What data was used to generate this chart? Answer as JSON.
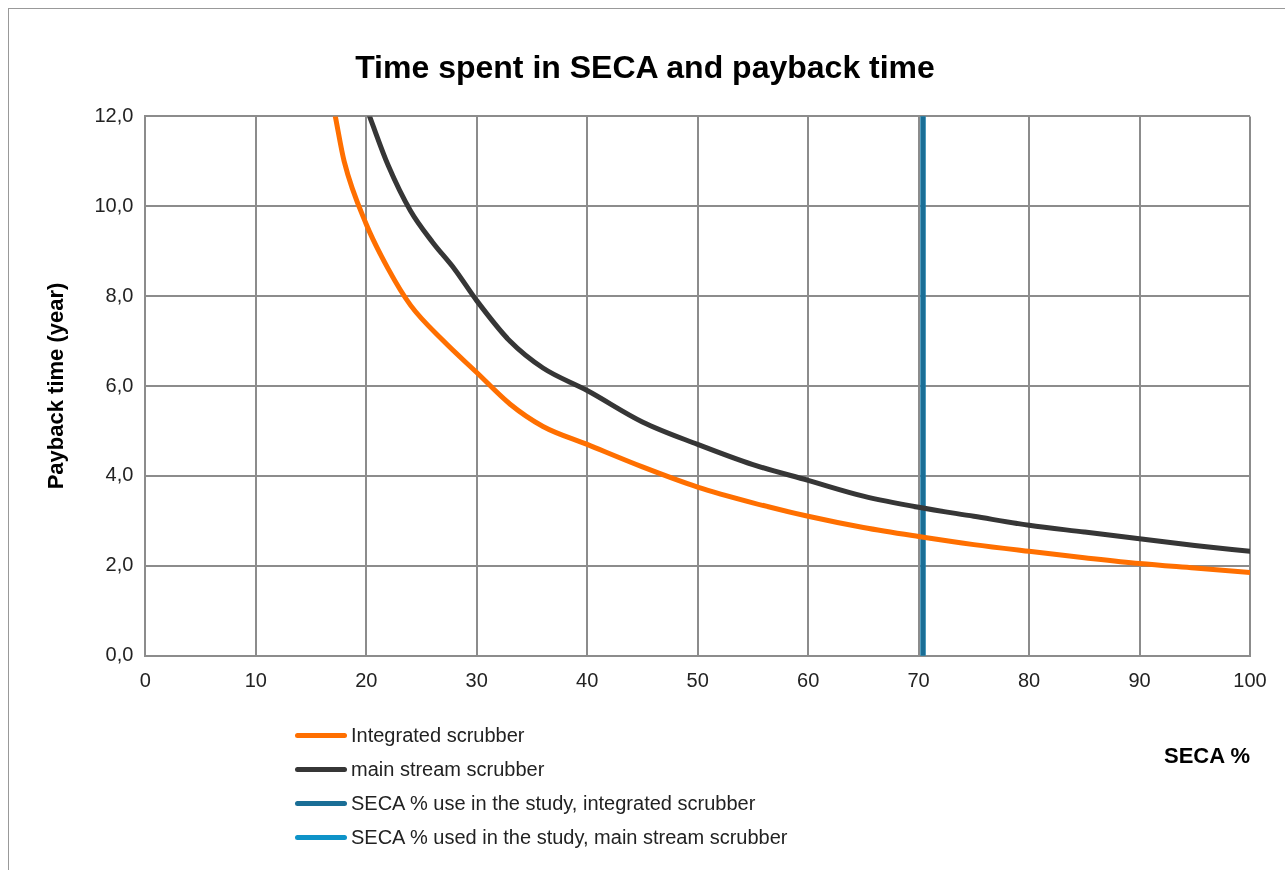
{
  "chart_data": {
    "type": "line",
    "title": "Time spent in SECA and payback time",
    "xlabel": "SECA %",
    "ylabel": "Payback time (year)",
    "xlim": [
      0,
      100
    ],
    "xticks": [
      0,
      10,
      20,
      30,
      40,
      50,
      60,
      70,
      80,
      90,
      100
    ],
    "ylim": [
      0,
      12
    ],
    "yticks": [
      {
        "value": 0,
        "label": "0,0"
      },
      {
        "value": 2,
        "label": "2,0"
      },
      {
        "value": 4,
        "label": "4,0"
      },
      {
        "value": 6,
        "label": "6,0"
      },
      {
        "value": 8,
        "label": "8,0"
      },
      {
        "value": 10,
        "label": "10,0"
      },
      {
        "value": 12,
        "label": "12,0"
      }
    ],
    "grid": true,
    "legend": "bottom left",
    "marker": "none",
    "line_style": "solid",
    "series": [
      {
        "name": "Integrated scrubber",
        "color": "#ff6f00",
        "x": [
          17.2,
          18,
          20,
          22,
          24,
          27,
          30,
          33,
          36,
          40,
          45,
          50,
          55,
          60,
          65,
          70,
          75,
          80,
          85,
          90,
          95,
          100
        ],
        "values": [
          12,
          11,
          9.6,
          8.6,
          7.8,
          7.0,
          6.3,
          5.6,
          5.1,
          4.7,
          4.2,
          3.75,
          3.4,
          3.1,
          2.85,
          2.65,
          2.47,
          2.32,
          2.18,
          2.05,
          1.95,
          1.85
        ]
      },
      {
        "name": "main stream scrubber",
        "color": "#363636",
        "x": [
          20.3,
          22,
          24,
          26,
          28,
          30,
          33,
          36,
          40,
          45,
          50,
          55,
          60,
          65,
          70,
          75,
          80,
          85,
          90,
          95,
          100
        ],
        "values": [
          12,
          10.9,
          9.9,
          9.2,
          8.6,
          7.9,
          7.0,
          6.4,
          5.9,
          5.2,
          4.7,
          4.25,
          3.9,
          3.55,
          3.3,
          3.1,
          2.9,
          2.75,
          2.6,
          2.45,
          2.32
        ]
      },
      {
        "name": "SECA % use in the study, integrated scrubber",
        "color": "#1a6e96",
        "x": [
          70.4,
          70.4
        ],
        "values": [
          0,
          12
        ]
      },
      {
        "name": "SECA % used in the study, main stream scrubber",
        "color": "#0e93c8",
        "x": [
          70.4,
          70.4
        ],
        "values": [
          0,
          12
        ]
      }
    ]
  }
}
